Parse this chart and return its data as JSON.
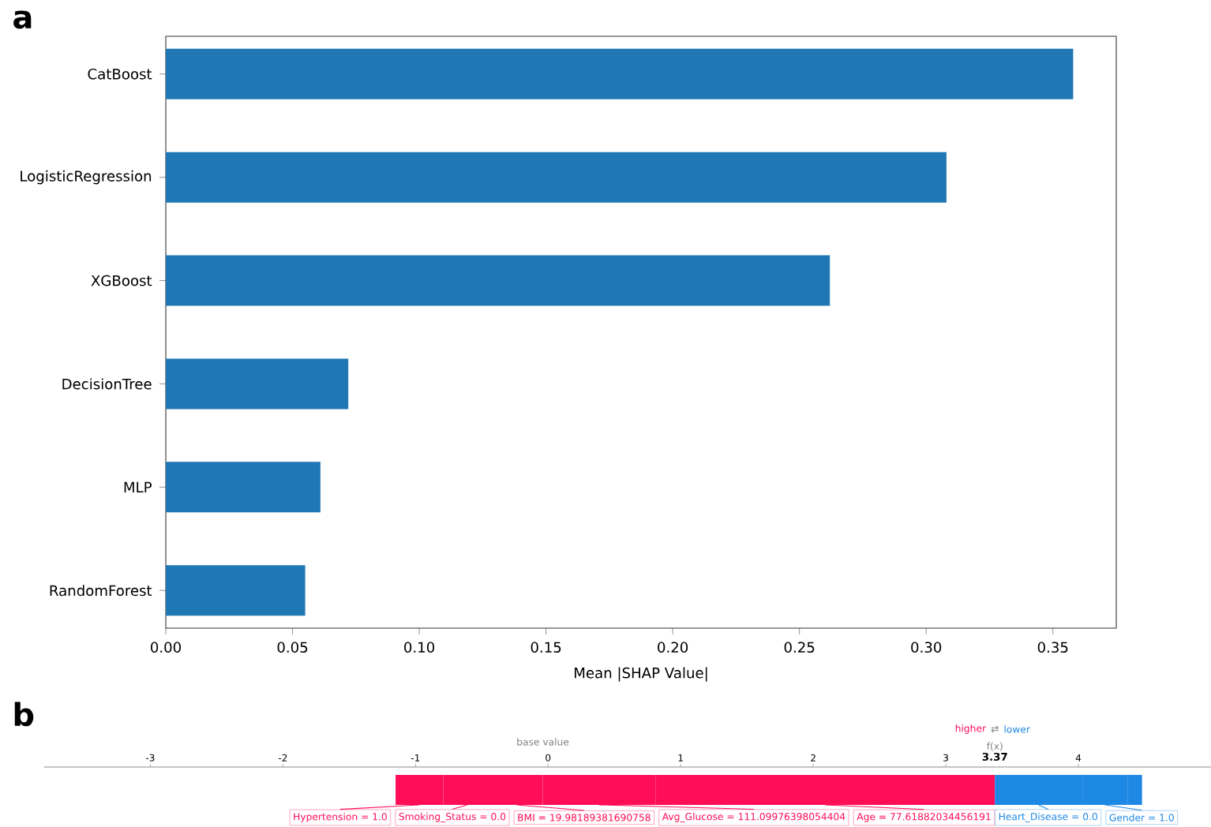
{
  "chart_data": [
    {
      "type": "bar",
      "title": "a",
      "orientation": "horizontal",
      "xlabel": "Mean |SHAP Value|",
      "categories": [
        "CatBoost",
        "LogisticRegression",
        "XGBoost",
        "DecisionTree",
        "MLP",
        "RandomForest"
      ],
      "values": [
        0.358,
        0.308,
        0.262,
        0.072,
        0.061,
        0.055
      ],
      "color": "#1f77b4",
      "xlim": [
        0,
        0.375
      ],
      "xticks": [
        {
          "value": 0,
          "label": "0.00"
        },
        {
          "value": 0.05,
          "label": "0.05"
        },
        {
          "value": 0.1,
          "label": "0.10"
        },
        {
          "value": 0.15,
          "label": "0.15"
        },
        {
          "value": 0.2,
          "label": "0.20"
        },
        {
          "value": 0.25,
          "label": "0.25"
        },
        {
          "value": 0.3,
          "label": "0.30"
        },
        {
          "value": 0.35,
          "label": "0.35"
        }
      ]
    },
    {
      "type": "bar",
      "title": "b",
      "orientation": "horizontal",
      "categories": [
        null
      ],
      "legend": "top right",
      "series": [
        {
          "name": "Hypertension = 1.0",
          "color": "#ff0d57",
          "base": [
            -1.15
          ],
          "values": [
            0.36
          ]
        },
        {
          "name": "Smoking_Status = 0.0",
          "color": "#ff0d57",
          "base": [
            -0.79
          ],
          "values": [
            0.36
          ]
        },
        {
          "name": "BMI = 19.98189381690758",
          "color": "#ff0d57",
          "base": [
            -0.43
          ],
          "values": [
            0.39
          ]
        },
        {
          "name": "Avg_Glucose = 111.09976398054404",
          "color": "#ff0d57",
          "base": [
            -0.04
          ],
          "values": [
            0.85
          ]
        },
        {
          "name": "Age = 77.61882034456191",
          "color": "#ff0d57",
          "base": [
            0.81
          ],
          "values": [
            2.56
          ]
        },
        {
          "name": "Heart_Disease = 0.0",
          "color": "#1e88e5",
          "base": [
            3.37
          ],
          "values": [
            0.66
          ]
        },
        {
          "name": "Gender = 1.0",
          "color": "#1e88e5",
          "base": [
            4.03
          ],
          "values": [
            0.34
          ]
        },
        {
          "color": "#1e88e5",
          "base": [
            4.37
          ],
          "values": [
            0.11
          ]
        }
      ],
      "xlim": [
        -3.8,
        5.0
      ],
      "xticks": [
        -3,
        -2,
        -1,
        0,
        1,
        2,
        3,
        4
      ],
      "annotations": [
        "base value",
        "higher",
        "⇄",
        "lower",
        "f(x)",
        "3.37"
      ]
    }
  ]
}
